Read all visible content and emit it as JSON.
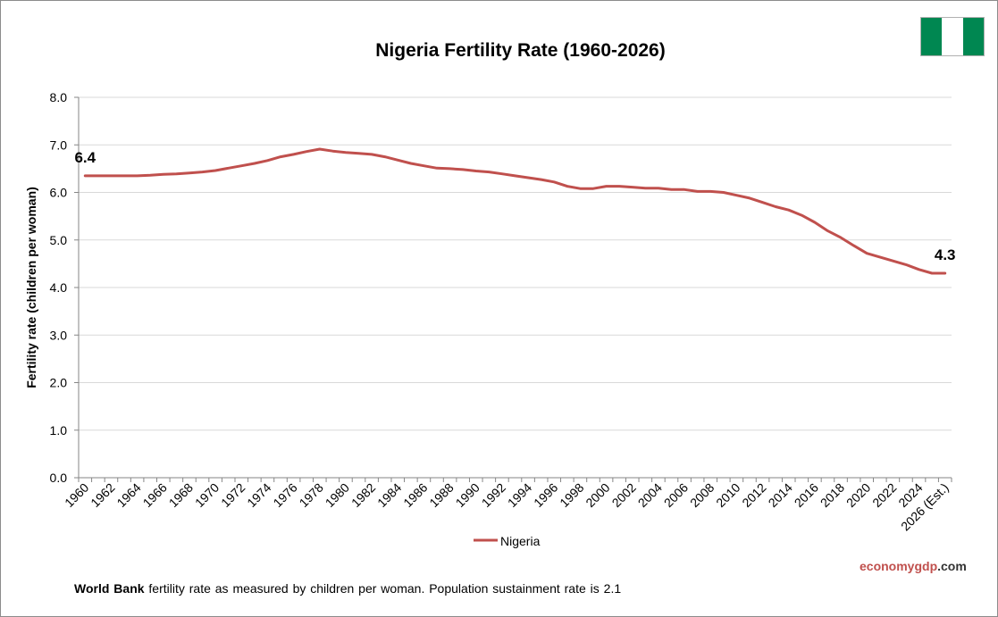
{
  "chart_data": {
    "type": "line",
    "title": "Nigeria Fertility Rate (1960-2026)",
    "ylabel": "Fertility rate (children per woman)",
    "xlabel": "",
    "ylim": [
      0,
      8
    ],
    "yticks": [
      "0.0",
      "1.0",
      "2.0",
      "3.0",
      "4.0",
      "5.0",
      "6.0",
      "7.0",
      "8.0"
    ],
    "grid": "horizontal",
    "legend_position": "bottom",
    "x": [
      "1960",
      "1961",
      "1962",
      "1963",
      "1964",
      "1965",
      "1966",
      "1967",
      "1968",
      "1969",
      "1970",
      "1971",
      "1972",
      "1973",
      "1974",
      "1975",
      "1976",
      "1977",
      "1978",
      "1979",
      "1980",
      "1981",
      "1982",
      "1983",
      "1984",
      "1985",
      "1986",
      "1987",
      "1988",
      "1989",
      "1990",
      "1991",
      "1992",
      "1993",
      "1994",
      "1995",
      "1996",
      "1997",
      "1998",
      "1999",
      "2000",
      "2001",
      "2002",
      "2003",
      "2004",
      "2005",
      "2006",
      "2007",
      "2008",
      "2009",
      "2010",
      "2011",
      "2012",
      "2013",
      "2014",
      "2015",
      "2016",
      "2017",
      "2018",
      "2019",
      "2020",
      "2021",
      "2022",
      "2023",
      "2024",
      "2025",
      "2026 (Est.)"
    ],
    "x_tick_labels": [
      "1960",
      "1962",
      "1964",
      "1966",
      "1968",
      "1970",
      "1972",
      "1974",
      "1976",
      "1978",
      "1980",
      "1982",
      "1984",
      "1986",
      "1988",
      "1990",
      "1992",
      "1994",
      "1996",
      "1998",
      "2000",
      "2002",
      "2004",
      "2006",
      "2008",
      "2010",
      "2012",
      "2014",
      "2016",
      "2018",
      "2020",
      "2022",
      "2024",
      "2026 (Est.)"
    ],
    "series": [
      {
        "name": "Nigeria",
        "color": "#c0504d",
        "values": [
          6.35,
          6.35,
          6.35,
          6.35,
          6.35,
          6.36,
          6.38,
          6.39,
          6.41,
          6.43,
          6.46,
          6.51,
          6.56,
          6.61,
          6.67,
          6.75,
          6.8,
          6.86,
          6.91,
          6.87,
          6.84,
          6.82,
          6.8,
          6.75,
          6.68,
          6.61,
          6.56,
          6.51,
          6.5,
          6.48,
          6.45,
          6.43,
          6.39,
          6.35,
          6.31,
          6.27,
          6.22,
          6.13,
          6.08,
          6.08,
          6.13,
          6.13,
          6.11,
          6.09,
          6.09,
          6.06,
          6.06,
          6.02,
          6.02,
          6.0,
          5.94,
          5.88,
          5.79,
          5.7,
          5.63,
          5.52,
          5.37,
          5.19,
          5.05,
          4.88,
          4.72,
          4.64,
          4.56,
          4.48,
          4.38,
          4.3,
          4.3
        ]
      }
    ],
    "annotations": [
      {
        "text": "6.4",
        "x": "1960",
        "y": 6.35
      },
      {
        "text": "4.3",
        "x": "2026 (Est.)",
        "y": 4.3
      }
    ]
  },
  "flag": {
    "name": "nigeria-flag",
    "colors": [
      "#008751",
      "#ffffff",
      "#008751"
    ]
  },
  "footer": {
    "brand_part1": "economy",
    "brand_part2": "gdp",
    "brand_part3": ".com",
    "note_bold": "World Bank",
    "note_text": " fertility rate as measured by children per woman.  Population sustainment rate is 2.1"
  }
}
